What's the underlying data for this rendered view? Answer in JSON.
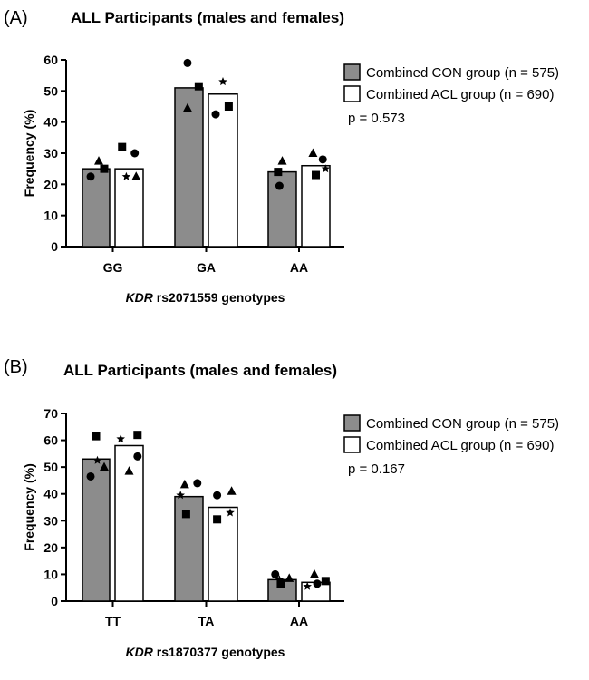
{
  "chart_data": [
    {
      "type": "bar",
      "panel_label": "(A)",
      "title": "ALL Participants (males and females)",
      "xlabel_italic": "KDR",
      "xlabel_rest": " rs2071559 genotypes",
      "ylabel": "Frequency (%)",
      "ylim": [
        0,
        60
      ],
      "yticks": [
        0,
        10,
        20,
        30,
        40,
        50,
        60
      ],
      "categories": [
        "GG",
        "GA",
        "AA"
      ],
      "series": [
        {
          "name": "Combined CON group (n = 575)",
          "color": "#8c8c8c",
          "values": [
            25,
            51,
            24
          ]
        },
        {
          "name": "Combined ACL group (n = 690)",
          "color": "#ffffff",
          "values": [
            25,
            49,
            26
          ]
        }
      ],
      "points": [
        {
          "series": 0,
          "cat": 0,
          "marker": "triangle",
          "offset": 0.1,
          "y": 27.5
        },
        {
          "series": 0,
          "cat": 0,
          "marker": "circle",
          "offset": -0.2,
          "y": 22.5
        },
        {
          "series": 0,
          "cat": 0,
          "marker": "square",
          "offset": 0.3,
          "y": 25
        },
        {
          "series": 1,
          "cat": 0,
          "marker": "square",
          "offset": -0.25,
          "y": 32
        },
        {
          "series": 1,
          "cat": 0,
          "marker": "circle",
          "offset": 0.2,
          "y": 30
        },
        {
          "series": 1,
          "cat": 0,
          "marker": "star",
          "offset": -0.1,
          "y": 22.5
        },
        {
          "series": 1,
          "cat": 0,
          "marker": "triangle",
          "offset": 0.25,
          "y": 22.5
        },
        {
          "series": 0,
          "cat": 1,
          "marker": "circle",
          "offset": -0.05,
          "y": 59
        },
        {
          "series": 0,
          "cat": 1,
          "marker": "square",
          "offset": 0.35,
          "y": 51.5
        },
        {
          "series": 0,
          "cat": 1,
          "marker": "triangle",
          "offset": -0.05,
          "y": 44.5
        },
        {
          "series": 1,
          "cat": 1,
          "marker": "star",
          "offset": 0.0,
          "y": 53
        },
        {
          "series": 1,
          "cat": 1,
          "marker": "square",
          "offset": 0.2,
          "y": 45
        },
        {
          "series": 1,
          "cat": 1,
          "marker": "circle",
          "offset": -0.25,
          "y": 42.5
        },
        {
          "series": 0,
          "cat": 2,
          "marker": "triangle",
          "offset": 0.0,
          "y": 27.5
        },
        {
          "series": 0,
          "cat": 2,
          "marker": "square",
          "offset": -0.15,
          "y": 24
        },
        {
          "series": 0,
          "cat": 2,
          "marker": "circle",
          "offset": -0.1,
          "y": 19.5
        },
        {
          "series": 1,
          "cat": 2,
          "marker": "triangle",
          "offset": -0.1,
          "y": 30
        },
        {
          "series": 1,
          "cat": 2,
          "marker": "circle",
          "offset": 0.25,
          "y": 28
        },
        {
          "series": 1,
          "cat": 2,
          "marker": "star",
          "offset": 0.35,
          "y": 25
        },
        {
          "series": 1,
          "cat": 2,
          "marker": "square",
          "offset": 0.0,
          "y": 23
        }
      ],
      "annotation": "p = 0.573"
    },
    {
      "type": "bar",
      "panel_label": "(B)",
      "title": "ALL Participants (males and females)",
      "xlabel_italic": "KDR",
      "xlabel_rest": " rs1870377 genotypes",
      "ylabel": "Frequency (%)",
      "ylim": [
        0,
        70
      ],
      "yticks": [
        0,
        10,
        20,
        30,
        40,
        50,
        60,
        70
      ],
      "categories": [
        "TT",
        "TA",
        "AA"
      ],
      "series": [
        {
          "name": "Combined CON group (n = 575)",
          "color": "#8c8c8c",
          "values": [
            53,
            39,
            8
          ]
        },
        {
          "name": "Combined ACL group (n = 690)",
          "color": "#ffffff",
          "values": [
            58,
            35,
            7
          ]
        }
      ],
      "points": [
        {
          "series": 0,
          "cat": 0,
          "marker": "square",
          "offset": 0.0,
          "y": 61.5
        },
        {
          "series": 0,
          "cat": 0,
          "marker": "star",
          "offset": 0.05,
          "y": 52.5
        },
        {
          "series": 0,
          "cat": 0,
          "marker": "triangle",
          "offset": 0.3,
          "y": 50
        },
        {
          "series": 0,
          "cat": 0,
          "marker": "circle",
          "offset": -0.2,
          "y": 46.5
        },
        {
          "series": 1,
          "cat": 0,
          "marker": "star",
          "offset": -0.3,
          "y": 60.5
        },
        {
          "series": 1,
          "cat": 0,
          "marker": "square",
          "offset": 0.3,
          "y": 62
        },
        {
          "series": 1,
          "cat": 0,
          "marker": "circle",
          "offset": 0.3,
          "y": 54
        },
        {
          "series": 1,
          "cat": 0,
          "marker": "triangle",
          "offset": 0.0,
          "y": 48.5
        },
        {
          "series": 0,
          "cat": 1,
          "marker": "triangle",
          "offset": -0.15,
          "y": 43.5
        },
        {
          "series": 0,
          "cat": 1,
          "marker": "circle",
          "offset": 0.3,
          "y": 44
        },
        {
          "series": 0,
          "cat": 1,
          "marker": "star",
          "offset": -0.3,
          "y": 39.5
        },
        {
          "series": 0,
          "cat": 1,
          "marker": "square",
          "offset": -0.1,
          "y": 32.5
        },
        {
          "series": 1,
          "cat": 1,
          "marker": "circle",
          "offset": -0.2,
          "y": 39.5
        },
        {
          "series": 1,
          "cat": 1,
          "marker": "triangle",
          "offset": 0.3,
          "y": 41
        },
        {
          "series": 1,
          "cat": 1,
          "marker": "star",
          "offset": 0.25,
          "y": 33
        },
        {
          "series": 1,
          "cat": 1,
          "marker": "square",
          "offset": -0.2,
          "y": 30.5
        },
        {
          "series": 0,
          "cat": 2,
          "marker": "circle",
          "offset": -0.25,
          "y": 10
        },
        {
          "series": 0,
          "cat": 2,
          "marker": "triangle",
          "offset": 0.25,
          "y": 8.5
        },
        {
          "series": 0,
          "cat": 2,
          "marker": "star",
          "offset": -0.1,
          "y": 8
        },
        {
          "series": 0,
          "cat": 2,
          "marker": "square",
          "offset": -0.05,
          "y": 6.5
        },
        {
          "series": 1,
          "cat": 2,
          "marker": "triangle",
          "offset": -0.05,
          "y": 10
        },
        {
          "series": 1,
          "cat": 2,
          "marker": "square",
          "offset": 0.35,
          "y": 7.5
        },
        {
          "series": 1,
          "cat": 2,
          "marker": "circle",
          "offset": 0.05,
          "y": 6.5
        },
        {
          "series": 1,
          "cat": 2,
          "marker": "star",
          "offset": -0.3,
          "y": 5.5
        }
      ],
      "annotation": "p = 0.167"
    }
  ]
}
